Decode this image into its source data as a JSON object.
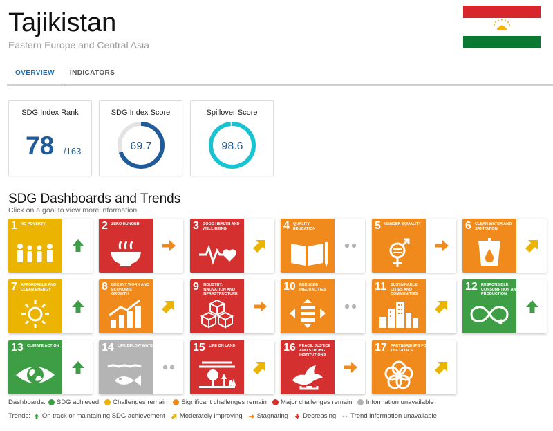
{
  "header": {
    "country": "Tajikistan",
    "region": "Eastern Europe and Central Asia",
    "flag_colors": {
      "top": "#d8262d",
      "middle": "#ffffff",
      "bottom": "#0a7a32",
      "emblem": "#f5b400"
    }
  },
  "tabs": [
    {
      "label": "OVERVIEW",
      "active": true
    },
    {
      "label": "INDICATORS",
      "active": false
    }
  ],
  "cards": {
    "rank": {
      "title": "SDG Index Rank",
      "value": "78",
      "total": "/163"
    },
    "score": {
      "title": "SDG Index Score",
      "value": "69.7",
      "fraction": 0.697,
      "color": "#1f5c99"
    },
    "spillover": {
      "title": "Spillover Score",
      "value": "98.6",
      "fraction": 0.986,
      "color": "#19c3d1"
    }
  },
  "section": {
    "title": "SDG Dashboards and Trends",
    "subtitle": "Click on a goal to view more information."
  },
  "goals": [
    {
      "num": "1",
      "label": "NO POVERTY",
      "color": "#e5243b",
      "tile": "#eab400",
      "icon": "people-icon",
      "trend": "up"
    },
    {
      "num": "2",
      "label": "ZERO HUNGER",
      "tile": "#d3302f",
      "icon": "bowl-icon",
      "trend": "right"
    },
    {
      "num": "3",
      "label": "GOOD HEALTH AND WELL-BEING",
      "tile": "#d3302f",
      "icon": "heartbeat-icon",
      "trend": "diag"
    },
    {
      "num": "4",
      "label": "QUALITY EDUCATION",
      "tile": "#f08a1d",
      "icon": "book-icon",
      "trend": "dots"
    },
    {
      "num": "5",
      "label": "GENDER EQUALITY",
      "tile": "#f08a1d",
      "icon": "gender-icon",
      "trend": "right"
    },
    {
      "num": "6",
      "label": "CLEAN WATER AND SANITATION",
      "tile": "#f08a1d",
      "icon": "water-icon",
      "trend": "diag"
    },
    {
      "num": "7",
      "label": "AFFORDABLE AND CLEAN ENERGY",
      "tile": "#eab400",
      "icon": "sun-icon",
      "trend": "up"
    },
    {
      "num": "8",
      "label": "DECENT WORK AND ECONOMIC GROWTH",
      "tile": "#f08a1d",
      "icon": "growth-icon",
      "trend": "diag"
    },
    {
      "num": "9",
      "label": "INDUSTRY, INNOVATION AND INFRASTRUCTURE",
      "tile": "#d3302f",
      "icon": "cubes-icon",
      "trend": "right"
    },
    {
      "num": "10",
      "label": "REDUCED INEQUALITIES",
      "tile": "#f08a1d",
      "icon": "equality-icon",
      "trend": "dots"
    },
    {
      "num": "11",
      "label": "SUSTAINABLE CITIES AND COMMUNITIES",
      "tile": "#f08a1d",
      "icon": "city-icon",
      "trend": "diag"
    },
    {
      "num": "12",
      "label": "RESPONSIBLE CONSUMPTION AND PRODUCTION",
      "tile": "#3e9e45",
      "icon": "infinity-icon",
      "trend": "up"
    },
    {
      "num": "13",
      "label": "CLIMATE ACTION",
      "tile": "#3e9e45",
      "icon": "eye-globe-icon",
      "trend": "up"
    },
    {
      "num": "14",
      "label": "LIFE BELOW WATER",
      "tile": "#b4b4b4",
      "icon": "fish-icon",
      "trend": "dots"
    },
    {
      "num": "15",
      "label": "LIFE ON LAND",
      "tile": "#d3302f",
      "icon": "tree-icon",
      "trend": "diag"
    },
    {
      "num": "16",
      "label": "PEACE, JUSTICE AND STRONG INSTITUTIONS",
      "tile": "#d3302f",
      "icon": "dove-icon",
      "trend": "right"
    },
    {
      "num": "17",
      "label": "PARTNERSHIPS FOR THE GOALS",
      "tile": "#f08a1d",
      "icon": "rings-icon",
      "trend": "diag"
    }
  ],
  "legend": {
    "dashboards_label": "Dashboards:",
    "dashboards": [
      {
        "label": "SDG achieved",
        "color": "#3e9e45"
      },
      {
        "label": "Challenges remain",
        "color": "#eab400"
      },
      {
        "label": "Significant challenges remain",
        "color": "#f08a1d"
      },
      {
        "label": "Major challenges remain",
        "color": "#d3302f"
      },
      {
        "label": "Information unavailable",
        "color": "#b4b4b4"
      }
    ],
    "trends_label": "Trends:",
    "trends": [
      {
        "label": "On track or maintaining SDG achievement",
        "icon": "arrow-up-icon",
        "color": "#3e9e45"
      },
      {
        "label": "Moderately improving",
        "icon": "arrow-diagonal-icon",
        "color": "#eab400"
      },
      {
        "label": "Stagnating",
        "icon": "arrow-right-icon",
        "color": "#f08a1d"
      },
      {
        "label": "Decreasing",
        "icon": "arrow-down-icon",
        "color": "#d3302f"
      },
      {
        "label": "Trend information unavailable",
        "icon": "dots-icon",
        "color": "#b4b4b4"
      }
    ]
  }
}
